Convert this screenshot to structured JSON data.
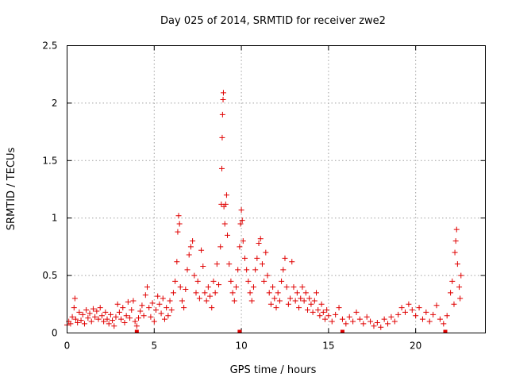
{
  "chart_data": {
    "type": "scatter",
    "title": "Day 025 of 2014, SRMTID for receiver zwe2",
    "xlabel": "GPS time / hours",
    "ylabel": "SRMTID / TECUs",
    "xlim": [
      0,
      24
    ],
    "ylim": [
      0,
      2.5
    ],
    "xticks": [
      0,
      5,
      10,
      15,
      20
    ],
    "xtick_labels": [
      "0",
      "5",
      "10",
      "15",
      "20"
    ],
    "yticks": [
      0,
      0.5,
      1,
      1.5,
      2,
      2.5
    ],
    "ytick_labels": [
      "0",
      "0.5",
      "1",
      "1.5",
      "2",
      "2.5"
    ],
    "grid": true,
    "series_color": "#ff0000",
    "marker_color": "#e00000",
    "series": [
      {
        "name": "SRMTID",
        "marker": "+",
        "points": [
          [
            0.0,
            0.07
          ],
          [
            0.1,
            0.1
          ],
          [
            0.2,
            0.08
          ],
          [
            0.3,
            0.14
          ],
          [
            0.4,
            0.22
          ],
          [
            0.45,
            0.3
          ],
          [
            0.5,
            0.12
          ],
          [
            0.6,
            0.09
          ],
          [
            0.7,
            0.18
          ],
          [
            0.8,
            0.11
          ],
          [
            0.9,
            0.16
          ],
          [
            1.0,
            0.08
          ],
          [
            1.1,
            0.2
          ],
          [
            1.2,
            0.13
          ],
          [
            1.3,
            0.17
          ],
          [
            1.4,
            0.1
          ],
          [
            1.5,
            0.21
          ],
          [
            1.6,
            0.14
          ],
          [
            1.7,
            0.19
          ],
          [
            1.8,
            0.12
          ],
          [
            1.9,
            0.22
          ],
          [
            2.0,
            0.15
          ],
          [
            2.1,
            0.1
          ],
          [
            2.2,
            0.18
          ],
          [
            2.3,
            0.12
          ],
          [
            2.4,
            0.08
          ],
          [
            2.5,
            0.16
          ],
          [
            2.6,
            0.11
          ],
          [
            2.7,
            0.06
          ],
          [
            2.8,
            0.14
          ],
          [
            2.9,
            0.25
          ],
          [
            3.0,
            0.18
          ],
          [
            3.1,
            0.12
          ],
          [
            3.2,
            0.22
          ],
          [
            3.3,
            0.09
          ],
          [
            3.4,
            0.15
          ],
          [
            3.5,
            0.27
          ],
          [
            3.6,
            0.13
          ],
          [
            3.7,
            0.2
          ],
          [
            3.8,
            0.28
          ],
          [
            3.9,
            0.1
          ],
          [
            4.0,
            0.06
          ],
          [
            4.1,
            0.13
          ],
          [
            4.2,
            0.19
          ],
          [
            4.3,
            0.24
          ],
          [
            4.4,
            0.15
          ],
          [
            4.5,
            0.33
          ],
          [
            4.6,
            0.4
          ],
          [
            4.7,
            0.22
          ],
          [
            4.8,
            0.14
          ],
          [
            4.9,
            0.26
          ],
          [
            5.0,
            0.1
          ],
          [
            5.1,
            0.2
          ],
          [
            5.2,
            0.32
          ],
          [
            5.3,
            0.25
          ],
          [
            5.4,
            0.17
          ],
          [
            5.5,
            0.3
          ],
          [
            5.6,
            0.12
          ],
          [
            5.7,
            0.22
          ],
          [
            5.8,
            0.15
          ],
          [
            5.9,
            0.28
          ],
          [
            6.0,
            0.2
          ],
          [
            6.1,
            0.35
          ],
          [
            6.2,
            0.45
          ],
          [
            6.3,
            0.62
          ],
          [
            6.35,
            0.88
          ],
          [
            6.4,
            1.02
          ],
          [
            6.45,
            0.95
          ],
          [
            6.5,
            0.4
          ],
          [
            6.6,
            0.28
          ],
          [
            6.7,
            0.22
          ],
          [
            6.8,
            0.38
          ],
          [
            6.9,
            0.55
          ],
          [
            7.0,
            0.68
          ],
          [
            7.1,
            0.75
          ],
          [
            7.2,
            0.8
          ],
          [
            7.3,
            0.5
          ],
          [
            7.4,
            0.35
          ],
          [
            7.5,
            0.45
          ],
          [
            7.6,
            0.3
          ],
          [
            7.7,
            0.72
          ],
          [
            7.8,
            0.58
          ],
          [
            7.9,
            0.35
          ],
          [
            8.0,
            0.28
          ],
          [
            8.1,
            0.4
          ],
          [
            8.2,
            0.32
          ],
          [
            8.3,
            0.22
          ],
          [
            8.4,
            0.45
          ],
          [
            8.5,
            0.35
          ],
          [
            8.6,
            0.6
          ],
          [
            8.7,
            0.42
          ],
          [
            8.8,
            0.75
          ],
          [
            8.85,
            1.12
          ],
          [
            8.88,
            1.43
          ],
          [
            8.9,
            1.7
          ],
          [
            8.92,
            1.9
          ],
          [
            8.95,
            2.03
          ],
          [
            8.97,
            2.09
          ],
          [
            9.0,
            1.1
          ],
          [
            9.05,
            0.95
          ],
          [
            9.1,
            1.12
          ],
          [
            9.15,
            1.2
          ],
          [
            9.2,
            0.85
          ],
          [
            9.3,
            0.6
          ],
          [
            9.4,
            0.45
          ],
          [
            9.5,
            0.35
          ],
          [
            9.6,
            0.28
          ],
          [
            9.7,
            0.4
          ],
          [
            9.8,
            0.55
          ],
          [
            9.9,
            0.75
          ],
          [
            9.95,
            0.95
          ],
          [
            10.0,
            1.07
          ],
          [
            10.05,
            0.98
          ],
          [
            10.1,
            0.8
          ],
          [
            10.2,
            0.65
          ],
          [
            10.3,
            0.55
          ],
          [
            10.4,
            0.45
          ],
          [
            10.5,
            0.35
          ],
          [
            10.6,
            0.28
          ],
          [
            10.7,
            0.4
          ],
          [
            10.8,
            0.55
          ],
          [
            10.9,
            0.65
          ],
          [
            11.0,
            0.78
          ],
          [
            11.1,
            0.82
          ],
          [
            11.2,
            0.6
          ],
          [
            11.3,
            0.45
          ],
          [
            11.4,
            0.7
          ],
          [
            11.5,
            0.5
          ],
          [
            11.6,
            0.35
          ],
          [
            11.7,
            0.25
          ],
          [
            11.8,
            0.4
          ],
          [
            11.9,
            0.3
          ],
          [
            12.0,
            0.22
          ],
          [
            12.1,
            0.35
          ],
          [
            12.2,
            0.28
          ],
          [
            12.3,
            0.45
          ],
          [
            12.4,
            0.55
          ],
          [
            12.5,
            0.65
          ],
          [
            12.6,
            0.4
          ],
          [
            12.7,
            0.25
          ],
          [
            12.8,
            0.3
          ],
          [
            12.9,
            0.62
          ],
          [
            13.0,
            0.4
          ],
          [
            13.1,
            0.28
          ],
          [
            13.2,
            0.35
          ],
          [
            13.3,
            0.22
          ],
          [
            13.4,
            0.3
          ],
          [
            13.5,
            0.4
          ],
          [
            13.6,
            0.28
          ],
          [
            13.7,
            0.35
          ],
          [
            13.8,
            0.2
          ],
          [
            13.9,
            0.3
          ],
          [
            14.0,
            0.25
          ],
          [
            14.1,
            0.18
          ],
          [
            14.2,
            0.28
          ],
          [
            14.3,
            0.35
          ],
          [
            14.4,
            0.2
          ],
          [
            14.5,
            0.15
          ],
          [
            14.6,
            0.25
          ],
          [
            14.7,
            0.18
          ],
          [
            14.8,
            0.12
          ],
          [
            14.9,
            0.2
          ],
          [
            15.0,
            0.15
          ],
          [
            15.2,
            0.1
          ],
          [
            15.4,
            0.16
          ],
          [
            15.6,
            0.22
          ],
          [
            15.8,
            0.12
          ],
          [
            16.0,
            0.08
          ],
          [
            16.2,
            0.14
          ],
          [
            16.4,
            0.1
          ],
          [
            16.6,
            0.18
          ],
          [
            16.8,
            0.12
          ],
          [
            17.0,
            0.08
          ],
          [
            17.2,
            0.14
          ],
          [
            17.4,
            0.1
          ],
          [
            17.6,
            0.06
          ],
          [
            17.8,
            0.09
          ],
          [
            18.0,
            0.05
          ],
          [
            18.2,
            0.12
          ],
          [
            18.4,
            0.08
          ],
          [
            18.6,
            0.14
          ],
          [
            18.8,
            0.1
          ],
          [
            19.0,
            0.16
          ],
          [
            19.2,
            0.22
          ],
          [
            19.4,
            0.18
          ],
          [
            19.6,
            0.25
          ],
          [
            19.8,
            0.2
          ],
          [
            20.0,
            0.15
          ],
          [
            20.2,
            0.22
          ],
          [
            20.4,
            0.12
          ],
          [
            20.6,
            0.18
          ],
          [
            20.8,
            0.1
          ],
          [
            21.0,
            0.16
          ],
          [
            21.2,
            0.24
          ],
          [
            21.4,
            0.12
          ],
          [
            21.6,
            0.08
          ],
          [
            21.8,
            0.15
          ],
          [
            22.0,
            0.35
          ],
          [
            22.1,
            0.45
          ],
          [
            22.2,
            0.25
          ],
          [
            22.25,
            0.7
          ],
          [
            22.3,
            0.8
          ],
          [
            22.35,
            0.9
          ],
          [
            22.4,
            0.6
          ],
          [
            22.5,
            0.4
          ],
          [
            22.55,
            0.3
          ],
          [
            22.6,
            0.5
          ]
        ]
      }
    ],
    "baseline_marks_x": [
      4.0,
      9.9,
      15.8,
      21.7
    ]
  }
}
